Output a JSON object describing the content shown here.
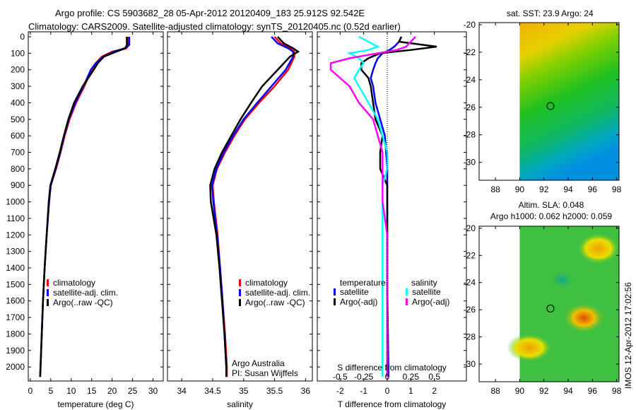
{
  "title_line1": "Argo profile: CS 5903682_28 05-Apr-2012 20120409_183 25.912S 92.542E",
  "title_line2": "Climatology: CARS2009. Satellite-adjusted climatology: synTS_20120405.nc (0.52d earlier)",
  "footer_stamp": "IMOS 12-Apr-2012 17:02:56",
  "colors": {
    "climatology": "#ff0000",
    "satellite": "#0000ff",
    "argo": "#000000",
    "sal_sat": "#00ffff",
    "sal_argo": "#ff00ff"
  },
  "chart_data": [
    {
      "type": "line",
      "id": "temp",
      "xlabel": "temperature (deg C)",
      "xlim": [
        -0.5,
        32.5
      ],
      "ylim": [
        2085,
        -30
      ],
      "xticks": [
        0,
        5,
        10,
        15,
        20,
        25,
        30
      ],
      "yticks": [
        0,
        100,
        200,
        300,
        400,
        500,
        600,
        700,
        800,
        900,
        1000,
        1100,
        1200,
        1300,
        1400,
        1500,
        1600,
        1700,
        1800,
        1900,
        2000
      ],
      "depth": [
        0,
        50,
        70,
        90,
        120,
        160,
        200,
        300,
        400,
        500,
        600,
        700,
        800,
        900,
        1000,
        1200,
        1400,
        1600,
        1800,
        2000,
        2060
      ],
      "series": [
        {
          "name": "climatology",
          "color": "#ff0000",
          "values": [
            24,
            24,
            23.5,
            20,
            17.5,
            16,
            15,
            13.2,
            11.2,
            9.6,
            8.4,
            7.4,
            6.3,
            5.0,
            4.6,
            4.0,
            3.5,
            3.1,
            2.8,
            2.5,
            2.4
          ]
        },
        {
          "name": "satellite-adj. clim.",
          "color": "#0000ff",
          "values": [
            24.2,
            24.2,
            23,
            20.5,
            17.8,
            16,
            14.8,
            13,
            11,
            9.4,
            8.3,
            7.3,
            6.2,
            5.0,
            4.6,
            4.0,
            3.5,
            3.1,
            2.8,
            2.5,
            2.4
          ]
        },
        {
          "name": "Argo(..raw -QC)",
          "color": "#000000",
          "values": [
            23.6,
            23.6,
            23.2,
            21,
            18,
            16.5,
            15.5,
            12.8,
            10.7,
            9.3,
            8.2,
            7.2,
            6.1,
            4.9,
            4.5,
            4.0,
            3.5,
            3.1,
            2.8,
            2.5,
            2.4
          ]
        }
      ],
      "legend": [
        "climatology",
        "satellite-adj. clim.",
        "Argo(..raw -QC)"
      ]
    },
    {
      "type": "line",
      "id": "sal",
      "xlabel": "salinity",
      "xlim": [
        33.77,
        36.11
      ],
      "ylim": [
        2085,
        -30
      ],
      "xticks": [
        34,
        34.5,
        35,
        35.5,
        36
      ],
      "depth": [
        0,
        40,
        70,
        90,
        120,
        200,
        300,
        400,
        500,
        600,
        700,
        800,
        900,
        1000,
        1200,
        1400,
        1600,
        1800,
        2000,
        2060
      ],
      "series": [
        {
          "name": "climatology",
          "color": "#ff0000",
          "values": [
            35.5,
            35.6,
            35.75,
            35.82,
            35.82,
            35.72,
            35.5,
            35.25,
            35.02,
            34.85,
            34.7,
            34.57,
            34.5,
            34.52,
            34.58,
            34.62,
            34.66,
            34.7,
            34.73,
            34.73
          ]
        },
        {
          "name": "satellite-adj. clim.",
          "color": "#0000ff",
          "values": [
            35.45,
            35.55,
            35.72,
            35.8,
            35.8,
            35.68,
            35.45,
            35.22,
            35.0,
            34.83,
            34.68,
            34.56,
            34.49,
            34.51,
            34.57,
            34.62,
            34.66,
            34.69,
            34.72,
            34.72
          ]
        },
        {
          "name": "Argo(..raw -QC)",
          "color": "#000000",
          "values": [
            35.55,
            35.65,
            35.8,
            35.88,
            35.75,
            35.55,
            35.3,
            35.12,
            34.95,
            34.8,
            34.65,
            34.53,
            34.46,
            34.47,
            34.56,
            34.61,
            34.65,
            34.69,
            34.72,
            34.72
          ]
        }
      ],
      "legend": [
        "climatology",
        "satellite-adj. clim.",
        "Argo(..raw -QC)"
      ],
      "annotation": [
        "Argo Australia",
        "PI: Susan Wijffels"
      ]
    },
    {
      "type": "line",
      "id": "diff",
      "xlabel": "T difference from climatology",
      "x2label": "S difference from climatology",
      "xlim": [
        -2.97,
        3.36
      ],
      "ylim": [
        2085,
        -30
      ],
      "xticks": [
        -2,
        -1,
        0,
        1,
        2
      ],
      "x2ticks": [
        -0.5,
        -0.25,
        0,
        0.25,
        0.5
      ],
      "depth": [
        0,
        30,
        60,
        80,
        100,
        130,
        160,
        200,
        250,
        300,
        400,
        500,
        600,
        700,
        800,
        900,
        1000,
        1200,
        1500,
        2000,
        2060
      ],
      "series": [
        {
          "name": "temperature satellite",
          "color": "#0000ff",
          "values": [
            0.6,
            0.5,
            0.3,
            0.1,
            -0.2,
            -0.4,
            -0.5,
            -0.6,
            -0.7,
            -0.6,
            -0.5,
            -0.3,
            -0.1,
            -0.05,
            0,
            0,
            0,
            0,
            0,
            0.05,
            0.05
          ]
        },
        {
          "name": "temperature Argo(-adj)",
          "color": "#000000",
          "values": [
            0.6,
            0.5,
            2.1,
            1.0,
            -0.3,
            -0.8,
            -1.1,
            -1.1,
            -0.8,
            -0.7,
            -0.6,
            -0.5,
            -0.2,
            -0.3,
            -0.3,
            0,
            0,
            0,
            0,
            0,
            0
          ]
        },
        {
          "name": "salinity satellite",
          "color": "#00ffff",
          "values": [
            -0.3,
            -0.2,
            -0.1,
            -0.2,
            -0.4,
            -0.3,
            -0.25,
            -0.3,
            -0.35,
            -0.3,
            -0.2,
            -0.1,
            -0.05,
            0,
            0,
            -0.05,
            -0.05,
            -0.05,
            -0.05,
            -0.05,
            -0.05
          ]
        },
        {
          "name": "salinity Argo(-adj)",
          "color": "#ff00ff",
          "values": [
            0.3,
            0.25,
            0.2,
            0.1,
            -0.1,
            -0.4,
            -0.6,
            -0.6,
            -0.5,
            -0.4,
            -0.3,
            -0.15,
            -0.1,
            -0.05,
            -0.05,
            -0.05,
            -0.05,
            0,
            0,
            0,
            0
          ]
        }
      ],
      "legend_titles": [
        "temperature",
        "salinity"
      ],
      "legend": [
        "satellite",
        "Argo(-adj)",
        "satellite",
        "Argo(-adj)"
      ]
    },
    {
      "type": "heatmap",
      "id": "sst",
      "title": "sat. SST: 23.9 Argo: 24",
      "xlim": [
        86.65,
        98.2
      ],
      "ylim": [
        -31.3,
        -19.85
      ],
      "xticks": [
        88,
        90,
        92,
        94,
        96,
        98
      ],
      "yticks": [
        -20,
        -22,
        -24,
        -26,
        -28,
        -30
      ],
      "marker": [
        92.54,
        -25.91
      ]
    },
    {
      "type": "heatmap",
      "id": "sla",
      "title": [
        "Altim. SLA: 0.048",
        "Argo h1000: 0.062 h2000: 0.059"
      ],
      "xlim": [
        86.65,
        98.2
      ],
      "ylim": [
        -31.3,
        -19.85
      ],
      "xticks": [
        88,
        90,
        92,
        94,
        96,
        98
      ],
      "yticks": [
        -20,
        -22,
        -24,
        -26,
        -28,
        -30
      ],
      "marker": [
        92.54,
        -25.91
      ]
    }
  ]
}
